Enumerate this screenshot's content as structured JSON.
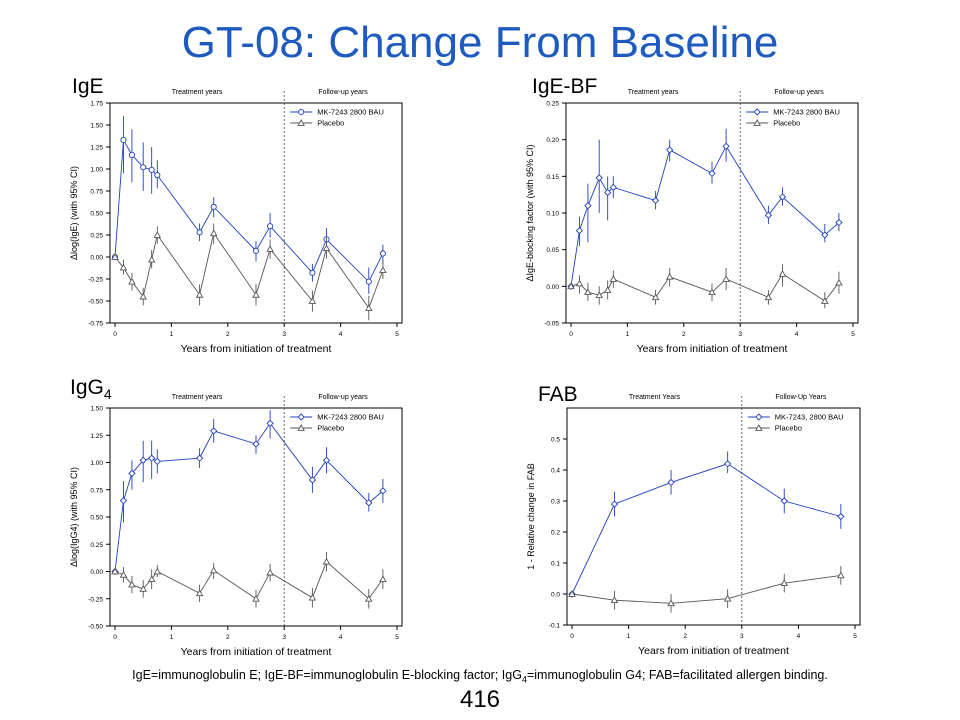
{
  "slide": {
    "title": "GT-08: Change From Baseline",
    "footnote": {
      "part1": "IgE=immunoglobulin  E; IgE-BF=immunoglobulin  E-blocking factor; IgG",
      "sub": "4",
      "part2": "=immunoglobulin  G4; FAB=facilitated allergen binding."
    },
    "page_number": "416"
  },
  "chart_data": [
    {
      "label": "IgE",
      "label_sub": "",
      "type": "line",
      "region_left": "Treatment years",
      "region_right": "Follow-up years",
      "xlabel": "Years from initiation of treatment",
      "ylabel": "Δlog(IgE) (with 95% CI)",
      "xlim": [
        0,
        5
      ],
      "xticks": [
        "0",
        "1",
        "2",
        "3",
        "4",
        "5"
      ],
      "ylim": [
        -0.75,
        1.75
      ],
      "yticks": [
        "-0.75",
        "-0.50",
        "-0.25",
        "0.00",
        "0.25",
        "0.50",
        "0.75",
        "1.00",
        "1.25",
        "1.50",
        "1.75"
      ],
      "divider_x": 3,
      "series": [
        {
          "name": "MK-7243 2800 BAU",
          "marker": "circle",
          "color": "#1f3fbf",
          "x": [
            0,
            0.15,
            0.3,
            0.5,
            0.65,
            0.75,
            1.5,
            1.75,
            2.5,
            2.75,
            3.5,
            3.75,
            4.5,
            4.75
          ],
          "y": [
            0.0,
            1.33,
            1.16,
            1.02,
            0.99,
            0.93,
            0.28,
            0.57,
            0.07,
            0.35,
            -0.18,
            0.2,
            -0.28,
            0.04
          ],
          "lo": [
            0.0,
            0.95,
            0.85,
            0.75,
            0.72,
            0.78,
            0.18,
            0.45,
            -0.05,
            0.22,
            -0.28,
            0.08,
            -0.42,
            -0.08
          ],
          "hi": [
            0.0,
            1.6,
            1.45,
            1.3,
            1.25,
            1.1,
            0.38,
            0.68,
            0.18,
            0.5,
            -0.08,
            0.33,
            -0.12,
            0.14
          ]
        },
        {
          "name": "Placebo",
          "marker": "triangle",
          "color": "#555555",
          "x": [
            0,
            0.15,
            0.3,
            0.5,
            0.65,
            0.75,
            1.5,
            1.75,
            2.5,
            2.75,
            3.5,
            3.75,
            4.5,
            4.75
          ],
          "y": [
            0.0,
            -0.12,
            -0.28,
            -0.45,
            -0.03,
            0.25,
            -0.43,
            0.27,
            -0.43,
            0.09,
            -0.5,
            0.1,
            -0.58,
            -0.15
          ],
          "lo": [
            0.0,
            -0.2,
            -0.38,
            -0.55,
            -0.13,
            0.15,
            -0.55,
            0.15,
            -0.55,
            -0.02,
            -0.62,
            -0.02,
            -0.72,
            -0.25
          ],
          "hi": [
            0.0,
            -0.03,
            -0.18,
            -0.35,
            0.08,
            0.35,
            -0.31,
            0.38,
            -0.31,
            0.2,
            -0.38,
            0.22,
            -0.44,
            -0.05
          ]
        }
      ]
    },
    {
      "label": "IgE-BF",
      "label_sub": "",
      "type": "line",
      "region_left": "Treatment years",
      "region_right": "Follow-up years",
      "xlabel": "Years from initiation of treatment",
      "ylabel": "ΔIgE-blocking factor (with 95% CI)",
      "xlim": [
        0,
        5
      ],
      "xticks": [
        "0",
        "1",
        "2",
        "3",
        "4",
        "5"
      ],
      "ylim": [
        -0.05,
        0.25
      ],
      "yticks": [
        "-0.05",
        "0.00",
        "0.05",
        "0.10",
        "0.15",
        "0.20",
        "0.25"
      ],
      "divider_x": 3,
      "series": [
        {
          "name": "MK-7243 2800 BAU",
          "marker": "diamond",
          "color": "#1f3fbf",
          "x": [
            0,
            0.15,
            0.3,
            0.5,
            0.65,
            0.75,
            1.5,
            1.75,
            2.5,
            2.75,
            3.5,
            3.75,
            4.5,
            4.75
          ],
          "y": [
            0.0,
            0.076,
            0.11,
            0.148,
            0.128,
            0.135,
            0.117,
            0.186,
            0.154,
            0.191,
            0.097,
            0.122,
            0.07,
            0.087
          ],
          "lo": [
            0.0,
            0.055,
            0.06,
            0.1,
            0.09,
            0.12,
            0.105,
            0.17,
            0.14,
            0.17,
            0.085,
            0.11,
            0.06,
            0.075
          ],
          "hi": [
            0.0,
            0.095,
            0.14,
            0.2,
            0.15,
            0.15,
            0.13,
            0.2,
            0.17,
            0.215,
            0.11,
            0.135,
            0.085,
            0.1
          ]
        },
        {
          "name": "Placebo",
          "marker": "triangle",
          "color": "#555555",
          "x": [
            0,
            0.15,
            0.3,
            0.5,
            0.65,
            0.75,
            1.5,
            1.75,
            2.5,
            2.75,
            3.5,
            3.75,
            4.5,
            4.75
          ],
          "y": [
            0.0,
            0.004,
            -0.008,
            -0.012,
            -0.005,
            0.01,
            -0.015,
            0.013,
            -0.008,
            0.01,
            -0.015,
            0.017,
            -0.02,
            0.005
          ],
          "lo": [
            0.0,
            -0.01,
            -0.02,
            -0.025,
            -0.018,
            -0.002,
            -0.025,
            0.0,
            -0.02,
            -0.005,
            -0.025,
            0.0,
            -0.03,
            -0.01
          ],
          "hi": [
            0.0,
            0.015,
            0.005,
            0.0,
            0.008,
            0.022,
            -0.005,
            0.025,
            0.004,
            0.025,
            -0.005,
            0.03,
            -0.008,
            0.02
          ]
        }
      ]
    },
    {
      "label": "IgG",
      "label_sub": "4",
      "type": "line",
      "region_left": "Treatment years",
      "region_right": "Follow-up years",
      "xlabel": "Years from initiation of treatment",
      "ylabel": "Δlog(IgG4) (with 95% CI)",
      "xlim": [
        0,
        5
      ],
      "xticks": [
        "0",
        "1",
        "2",
        "3",
        "4",
        "5"
      ],
      "ylim": [
        -0.5,
        1.5
      ],
      "yticks": [
        "-0.50",
        "-0.25",
        "0.00",
        "0.25",
        "0.50",
        "0.75",
        "1.00",
        "1.25",
        "1.50"
      ],
      "divider_x": 3,
      "series": [
        {
          "name": "MK-7243 2800 BAU",
          "marker": "diamond",
          "color": "#1f3fbf",
          "x": [
            0,
            0.15,
            0.3,
            0.5,
            0.65,
            0.75,
            1.5,
            1.75,
            2.5,
            2.75,
            3.5,
            3.75,
            4.5,
            4.75
          ],
          "y": [
            0.0,
            0.65,
            0.9,
            1.02,
            1.04,
            1.01,
            1.04,
            1.29,
            1.17,
            1.36,
            0.84,
            1.02,
            0.63,
            0.74
          ],
          "lo": [
            0.0,
            0.45,
            0.75,
            0.82,
            0.85,
            0.9,
            0.95,
            1.18,
            1.08,
            1.22,
            0.72,
            0.9,
            0.55,
            0.63
          ],
          "hi": [
            0.0,
            0.83,
            1.02,
            1.2,
            1.2,
            1.12,
            1.13,
            1.4,
            1.25,
            1.48,
            0.96,
            1.14,
            0.72,
            0.85
          ]
        },
        {
          "name": "Placebo",
          "marker": "triangle",
          "color": "#555555",
          "x": [
            0,
            0.15,
            0.3,
            0.5,
            0.65,
            0.75,
            1.5,
            1.75,
            2.5,
            2.75,
            3.5,
            3.75,
            4.5,
            4.75
          ],
          "y": [
            0.0,
            -0.03,
            -0.12,
            -0.16,
            -0.07,
            0.0,
            -0.2,
            0.01,
            -0.25,
            -0.01,
            -0.24,
            0.09,
            -0.25,
            -0.07
          ],
          "lo": [
            0.0,
            -0.1,
            -0.2,
            -0.24,
            -0.16,
            -0.05,
            -0.28,
            -0.07,
            -0.33,
            -0.09,
            -0.33,
            0.0,
            -0.34,
            -0.16
          ],
          "hi": [
            0.0,
            0.04,
            -0.04,
            -0.08,
            0.02,
            0.06,
            -0.12,
            0.08,
            -0.17,
            0.07,
            -0.15,
            0.18,
            -0.16,
            0.02
          ]
        }
      ]
    },
    {
      "label": "FAB",
      "label_sub": "",
      "type": "line",
      "region_left": "Treatment Years",
      "region_right": "Follow-Up Years",
      "xlabel": "Years from initiation of treatment",
      "ylabel": "1 - Relative change in FAB",
      "xlim": [
        0,
        5
      ],
      "xticks": [
        "0",
        "1",
        "2",
        "3",
        "4",
        "5"
      ],
      "ylim": [
        -0.1,
        0.6
      ],
      "yticks": [
        "-0.1",
        "0.0",
        "0.1",
        "0.2",
        "0.3",
        "0.4",
        "0.5"
      ],
      "divider_x": 3,
      "series": [
        {
          "name": "MK-7243, 2800 BAU",
          "marker": "diamond",
          "color": "#1f3fbf",
          "x": [
            0,
            0.75,
            1.75,
            2.75,
            3.75,
            4.75
          ],
          "y": [
            0.0,
            0.29,
            0.36,
            0.42,
            0.3,
            0.25
          ],
          "lo": [
            0.0,
            0.25,
            0.32,
            0.39,
            0.26,
            0.21
          ],
          "hi": [
            0.0,
            0.33,
            0.4,
            0.46,
            0.34,
            0.29
          ]
        },
        {
          "name": "Placebo",
          "marker": "triangle",
          "color": "#555555",
          "x": [
            0,
            0.75,
            1.75,
            2.75,
            3.75,
            4.75
          ],
          "y": [
            0.0,
            -0.02,
            -0.03,
            -0.015,
            0.035,
            0.06
          ],
          "lo": [
            0.0,
            -0.05,
            -0.06,
            -0.045,
            0.005,
            0.03
          ],
          "hi": [
            0.0,
            0.01,
            0.0,
            0.015,
            0.065,
            0.09
          ]
        }
      ]
    }
  ]
}
